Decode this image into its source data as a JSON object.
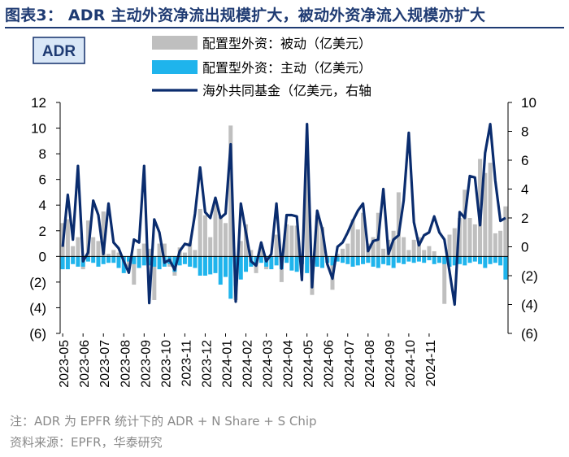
{
  "title": "图表3： ADR 主动外资净流出规模扩大，被动外资净流入规模亦扩大",
  "footnote": "注：ADR 为 EPFR 统计下的 ADR + N Share + S Chip",
  "source": "资料来源：EPFR，华泰研究",
  "chart_data": {
    "type": "bar+line",
    "label_box": "ADR",
    "legend": [
      {
        "name": "配置型外资：被动（亿美元）",
        "kind": "bar",
        "color": "#bfbfbf"
      },
      {
        "name": "配置型外资：主动（亿美元）",
        "kind": "bar",
        "color": "#1fb4ec"
      },
      {
        "name": "海外共同基金（亿美元，右轴",
        "kind": "line",
        "color": "#0a2c6e"
      }
    ],
    "left_axis": {
      "min": -6,
      "max": 12,
      "step": 2,
      "tick_labels": [
        "(6)",
        "(4)",
        "(2)",
        "0",
        "2",
        "4",
        "6",
        "8",
        "10",
        "12"
      ]
    },
    "right_axis": {
      "min": -6,
      "max": 10,
      "step": 2,
      "tick_labels": [
        "(6)",
        "(4)",
        "(2)",
        "0",
        "2",
        "4",
        "6",
        "8",
        "10"
      ]
    },
    "x_tick_labels": [
      "2023-05",
      "2023-06",
      "2023-07",
      "2023-08",
      "2023-09",
      "2023-10",
      "2023-11",
      "2023-12",
      "2024-01",
      "2024-02",
      "2024-03",
      "2024-04",
      "2024-05",
      "2024-06",
      "2024-07",
      "2024-08",
      "2024-09",
      "2024-10",
      "2024-11"
    ],
    "series": [
      {
        "name": "配置型外资：被动（亿美元）",
        "values": [
          2.6,
          2.9,
          0.8,
          1.5,
          -1.0,
          2.8,
          1.5,
          1.2,
          3.5,
          0.2,
          0.5,
          0.3,
          -0.1,
          -0.8,
          -2.2,
          0.6,
          1.0,
          0.6,
          -3.4,
          1.0,
          1.0,
          -0.8,
          -1.5,
          0.7,
          0.3,
          1.1,
          0.5,
          3.7,
          3.2,
          1.5,
          4.3,
          3.1,
          2.6,
          10.2,
          -3.4,
          1.2,
          2.5,
          0.5,
          -1.3,
          0.8,
          -1.0,
          -0.2,
          1.7,
          -2.0,
          2.5,
          2.4,
          2.4,
          -0.3,
          7.0,
          -3.0,
          3.2,
          2.3,
          -0.5,
          -2.6,
          0.2,
          0.6,
          1.0,
          2.9,
          2.1,
          3.4,
          1.0,
          1.5,
          3.4,
          0.6,
          1.3,
          2.0,
          5.0,
          1.5,
          0.5,
          1.3,
          1.5,
          0.5,
          0.8,
          0.4,
          -0.5,
          -3.7,
          1.7,
          2.2,
          3.0,
          5.2,
          3.0,
          2.5,
          7.6,
          6.5,
          7.3,
          1.8,
          2.0,
          3.9
        ]
      },
      {
        "name": "配置型外资：主动（亿美元）",
        "values": [
          -1.0,
          -1.0,
          -0.6,
          -0.8,
          -0.8,
          -0.4,
          -0.5,
          -0.8,
          -0.6,
          -0.5,
          -0.5,
          -0.9,
          -1.3,
          -0.4,
          -0.6,
          -0.9,
          -0.7,
          -0.7,
          -0.8,
          -1.0,
          -0.8,
          -0.6,
          -1.2,
          -0.7,
          -0.6,
          -0.8,
          -0.9,
          -1.5,
          -1.5,
          -1.4,
          -1.3,
          -2.2,
          -1.6,
          -3.3,
          -2.3,
          -1.8,
          -1.2,
          -0.8,
          -0.6,
          -0.5,
          -0.8,
          -1.0,
          -0.7,
          -1.0,
          -0.5,
          -1.1,
          -1.2,
          -0.6,
          -1.3,
          -0.5,
          -0.8,
          -0.9,
          -0.5,
          -0.7,
          -0.4,
          -0.5,
          -0.6,
          -0.8,
          -0.7,
          -0.6,
          -0.5,
          -0.8,
          -0.9,
          -0.6,
          -0.7,
          -0.9,
          -0.5,
          -0.6,
          -0.4,
          -0.5,
          -0.4,
          -0.5,
          -0.3,
          -0.6,
          -0.5,
          -0.6,
          -0.8,
          -0.7,
          -0.6,
          -0.7,
          -0.5,
          -0.4,
          -0.6,
          -0.9,
          -0.6,
          -0.5,
          -0.7,
          -1.8
        ]
      },
      {
        "name": "海外共同基金（亿美元，右轴",
        "values": [
          0.0,
          3.6,
          0.5,
          5.6,
          -1.0,
          -0.4,
          3.2,
          2.2,
          -0.5,
          3.0,
          0.3,
          -0.1,
          -1.0,
          -1.8,
          0.5,
          0.3,
          5.6,
          -3.9,
          1.9,
          1.0,
          -1.1,
          -0.9,
          -1.6,
          -0.3,
          0.2,
          0.1,
          2.3,
          5.5,
          2.4,
          2.0,
          3.4,
          2.0,
          2.3,
          7.1,
          -3.8,
          3.0,
          1.0,
          -1.0,
          -1.3,
          0.3,
          -1.0,
          -0.5,
          3.0,
          -1.5,
          2.2,
          2.2,
          2.1,
          -2.3,
          8.5,
          -2.8,
          2.5,
          1.2,
          -1.2,
          -2.2,
          0.0,
          0.3,
          1.0,
          1.8,
          2.5,
          3.0,
          -0.3,
          0.4,
          0.5,
          4.0,
          -0.5,
          0.5,
          0.8,
          3.2,
          7.9,
          1.7,
          0.1,
          0.8,
          1.0,
          2.1,
          1.0,
          0.5,
          -1.7,
          -4.0,
          2.4,
          2.0,
          4.9,
          4.8,
          1.5,
          6.5,
          8.5,
          4.6,
          1.8,
          2.0
        ]
      }
    ]
  }
}
